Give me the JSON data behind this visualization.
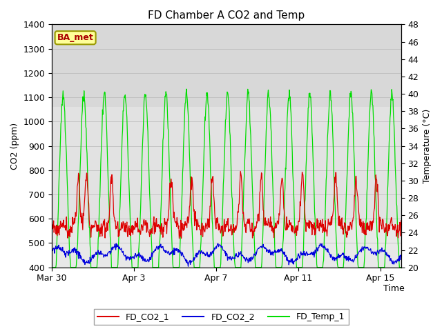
{
  "title": "FD Chamber A CO2 and Temp",
  "xlabel": "Time",
  "ylabel_left": "CO2 (ppm)",
  "ylabel_right": "Temperature (°C)",
  "ylim_left": [
    400,
    1400
  ],
  "ylim_right": [
    20,
    48
  ],
  "yticks_left": [
    400,
    500,
    600,
    700,
    800,
    900,
    1000,
    1100,
    1200,
    1300,
    1400
  ],
  "yticks_right": [
    20,
    22,
    24,
    26,
    28,
    30,
    32,
    34,
    36,
    38,
    40,
    42,
    44,
    46,
    48
  ],
  "xtick_labels": [
    "Mar 30",
    "Apr 3",
    "Apr 7",
    "Apr 11",
    "Apr 15"
  ],
  "xtick_positions": [
    0,
    4,
    8,
    12,
    16
  ],
  "xlim": [
    0,
    17
  ],
  "color_co2_1": "#dd0000",
  "color_co2_2": "#0000dd",
  "color_temp": "#00dd00",
  "legend_labels": [
    "FD_CO2_1",
    "FD_CO2_2",
    "FD_Temp_1"
  ],
  "bg_color": "#e8e8e8",
  "top_band_color": "#d0d0d0",
  "top_band_ymin": 1350,
  "top_band_ymax": 1400,
  "mid_band_ymin": 580,
  "mid_band_ymax": 1060,
  "annotation_text": "BA_met",
  "annotation_color": "#aa0000",
  "annotation_bg": "#ffff99",
  "annotation_border": "#999900",
  "linewidth": 0.9
}
